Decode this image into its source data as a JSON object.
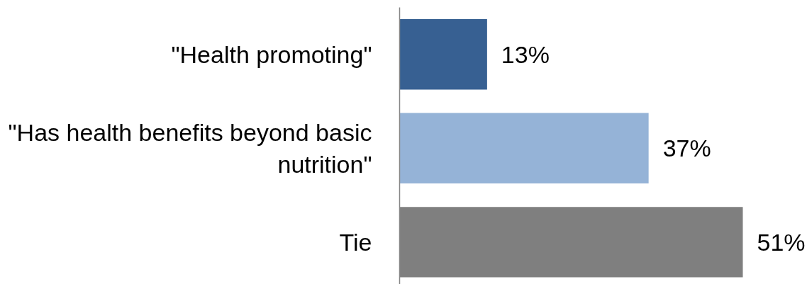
{
  "chart_data": {
    "type": "bar",
    "orientation": "horizontal",
    "categories": [
      "\"Health promoting\"",
      "\"Has health benefits beyond basic nutrition\"",
      "Tie"
    ],
    "values": [
      13,
      37,
      51
    ],
    "colors": [
      "#376092",
      "#95b3d7",
      "#7f7f7f"
    ],
    "value_labels": [
      "13%",
      "37%",
      "51%"
    ],
    "tick_labels": "y"
  }
}
